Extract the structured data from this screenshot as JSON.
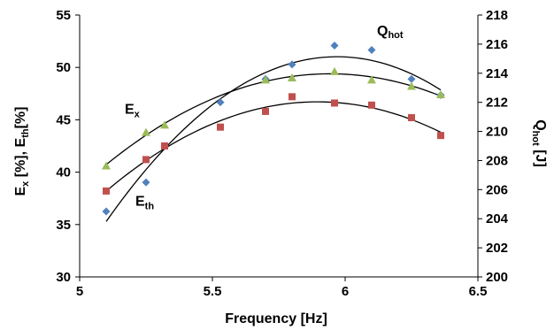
{
  "chart_data": {
    "type": "scatter",
    "xlabel": "Frequency [Hz]",
    "ylabel_left": {
      "main1": "E",
      "sub1": "x",
      "main2": " [%], E",
      "sub2": "th",
      "main3": "[%]"
    },
    "ylabel_right": {
      "main": "Q",
      "sub": "hot",
      "suffix": " [J]"
    },
    "xlim": [
      5,
      6.5
    ],
    "ylim_left": [
      30,
      55
    ],
    "ylim_right": [
      200,
      218
    ],
    "xticks": [
      "5",
      "5.5",
      "6",
      "6.5"
    ],
    "yticks_left": [
      "30",
      "35",
      "40",
      "45",
      "50",
      "55"
    ],
    "yticks_right": [
      "200",
      "202",
      "204",
      "206",
      "208",
      "210",
      "212",
      "214",
      "216",
      "218"
    ],
    "grid": false,
    "legend": "none",
    "series": [
      {
        "name": "Q_hot",
        "axis": "right",
        "marker": "diamond",
        "color": "#4f81bd",
        "trendline": "quadratic",
        "x": [
          5.1,
          5.25,
          5.32,
          5.53,
          5.7,
          5.8,
          5.96,
          6.1,
          6.25,
          6.36
        ],
        "y": [
          204.5,
          206.5,
          209.0,
          212.0,
          213.6,
          214.6,
          215.9,
          215.6,
          213.6,
          212.5
        ]
      },
      {
        "name": "E_x",
        "axis": "left",
        "marker": "triangle",
        "color": "#9bbb59",
        "trendline": "quadratic",
        "x": [
          5.1,
          5.25,
          5.32,
          5.7,
          5.8,
          5.96,
          6.1,
          6.25,
          6.36
        ],
        "y": [
          40.6,
          43.8,
          44.5,
          48.8,
          49.0,
          49.6,
          48.8,
          48.2,
          47.4
        ]
      },
      {
        "name": "E_th",
        "axis": "left",
        "marker": "square",
        "color": "#c0504d",
        "trendline": "quadratic",
        "x": [
          5.1,
          5.25,
          5.32,
          5.53,
          5.7,
          5.8,
          5.96,
          6.1,
          6.25,
          6.36
        ],
        "y": [
          38.2,
          41.2,
          42.5,
          44.3,
          45.8,
          47.2,
          46.6,
          46.4,
          45.2,
          43.5
        ]
      }
    ],
    "annotations": [
      {
        "id": "qhot",
        "main": "Q",
        "sub": "hot",
        "anchor_x": 6.12,
        "anchor_y_right": 216.6
      },
      {
        "id": "ex",
        "main": "E",
        "sub": "x",
        "anchor_x": 5.17,
        "anchor_y_left": 45.6
      },
      {
        "id": "eth",
        "main": "E",
        "sub": "th",
        "anchor_x": 5.21,
        "anchor_y_left": 36.8
      }
    ]
  }
}
